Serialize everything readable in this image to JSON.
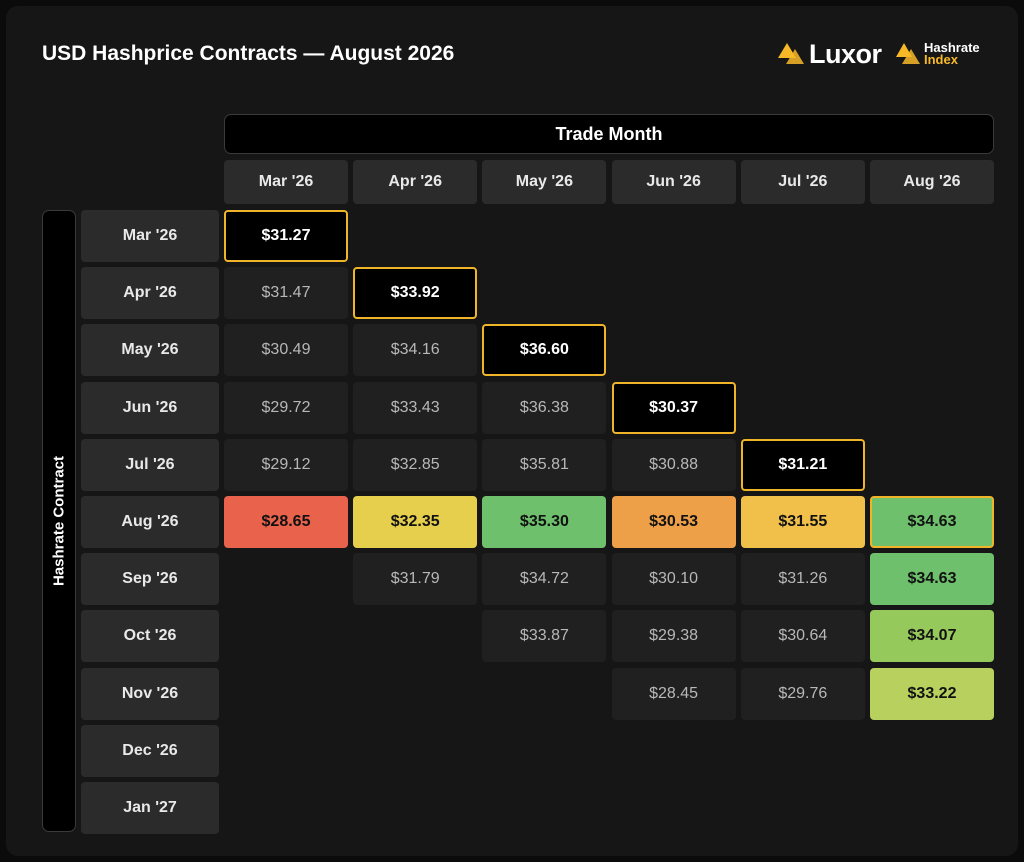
{
  "title": "USD Hashprice Contracts — August 2026",
  "brand": {
    "luxor": "Luxor",
    "hashrate_index_line1": "Hashrate",
    "hashrate_index_line2": "Index"
  },
  "colors": {
    "highlight_border": "#f0b429",
    "red": "#e8624c",
    "yellow": "#e6cf4d",
    "green": "#6ec06c",
    "orange": "#eea048",
    "amber": "#f0c04a",
    "lightgreen": "#95c95c",
    "yellowgreen": "#b8d05e"
  },
  "chart_data": {
    "type": "table",
    "x_axis_label": "Trade Month",
    "y_axis_label": "Hashrate Contract",
    "columns": [
      "Mar '26",
      "Apr '26",
      "May '26",
      "Jun '26",
      "Jul '26",
      "Aug '26"
    ],
    "rows": [
      {
        "label": "Mar '26",
        "values": [
          "$31.27",
          null,
          null,
          null,
          null,
          null
        ],
        "styles": [
          "hl",
          null,
          null,
          null,
          null,
          null
        ]
      },
      {
        "label": "Apr '26",
        "values": [
          "$31.47",
          "$33.92",
          null,
          null,
          null,
          null
        ],
        "styles": [
          "val",
          "hl",
          null,
          null,
          null,
          null
        ]
      },
      {
        "label": "May '26",
        "values": [
          "$30.49",
          "$34.16",
          "$36.60",
          null,
          null,
          null
        ],
        "styles": [
          "val",
          "val",
          "hl",
          null,
          null,
          null
        ]
      },
      {
        "label": "Jun '26",
        "values": [
          "$29.72",
          "$33.43",
          "$36.38",
          "$30.37",
          null,
          null
        ],
        "styles": [
          "val",
          "val",
          "val",
          "hl",
          null,
          null
        ]
      },
      {
        "label": "Jul '26",
        "values": [
          "$29.12",
          "$32.85",
          "$35.81",
          "$30.88",
          "$31.21",
          null
        ],
        "styles": [
          "val",
          "val",
          "val",
          "val",
          "hl",
          null
        ]
      },
      {
        "label": "Aug '26",
        "values": [
          "$28.65",
          "$32.35",
          "$35.30",
          "$30.53",
          "$31.55",
          "$34.63"
        ],
        "styles": [
          "red",
          "yellow",
          "green",
          "orange",
          "amber",
          "green-bordered"
        ]
      },
      {
        "label": "Sep '26",
        "values": [
          null,
          "$31.79",
          "$34.72",
          "$30.10",
          "$31.26",
          "$34.63"
        ],
        "styles": [
          null,
          "val",
          "val",
          "val",
          "val",
          "green"
        ]
      },
      {
        "label": "Oct '26",
        "values": [
          null,
          null,
          "$33.87",
          "$29.38",
          "$30.64",
          "$34.07"
        ],
        "styles": [
          null,
          null,
          "val",
          "val",
          "val",
          "lightgreen"
        ]
      },
      {
        "label": "Nov '26",
        "values": [
          null,
          null,
          null,
          "$28.45",
          "$29.76",
          "$33.22"
        ],
        "styles": [
          null,
          null,
          null,
          "val",
          "val",
          "yellowgreen"
        ]
      },
      {
        "label": "Dec '26",
        "values": [
          null,
          null,
          null,
          null,
          null,
          null
        ],
        "styles": [
          null,
          null,
          null,
          null,
          null,
          null
        ]
      },
      {
        "label": "Jan '27",
        "values": [
          null,
          null,
          null,
          null,
          null,
          null
        ],
        "styles": [
          null,
          null,
          null,
          null,
          null,
          null
        ]
      }
    ]
  }
}
